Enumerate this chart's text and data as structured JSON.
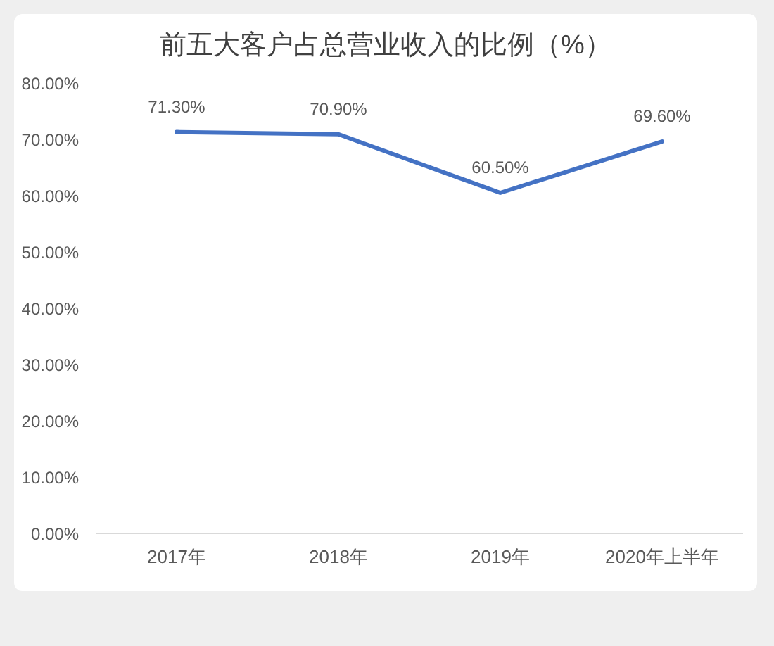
{
  "chart_data": {
    "type": "line",
    "title": "前五大客户占总营业收入的比例（%）",
    "categories": [
      "2017年",
      "2018年",
      "2019年",
      "2020年上半年"
    ],
    "values": [
      71.3,
      70.9,
      60.5,
      69.6
    ],
    "value_labels": [
      "71.30%",
      "70.90%",
      "60.50%",
      "69.60%"
    ],
    "color": "#4472c4",
    "ylim": [
      0,
      80
    ],
    "yticks": [
      {
        "value": 0,
        "label": "0.00%"
      },
      {
        "value": 10,
        "label": "10.00%"
      },
      {
        "value": 20,
        "label": "20.00%"
      },
      {
        "value": 30,
        "label": "30.00%"
      },
      {
        "value": 40,
        "label": "40.00%"
      },
      {
        "value": 50,
        "label": "50.00%"
      },
      {
        "value": 60,
        "label": "60.00%"
      },
      {
        "value": 70,
        "label": "70.00%"
      },
      {
        "value": 80,
        "label": "80.00%"
      }
    ]
  }
}
